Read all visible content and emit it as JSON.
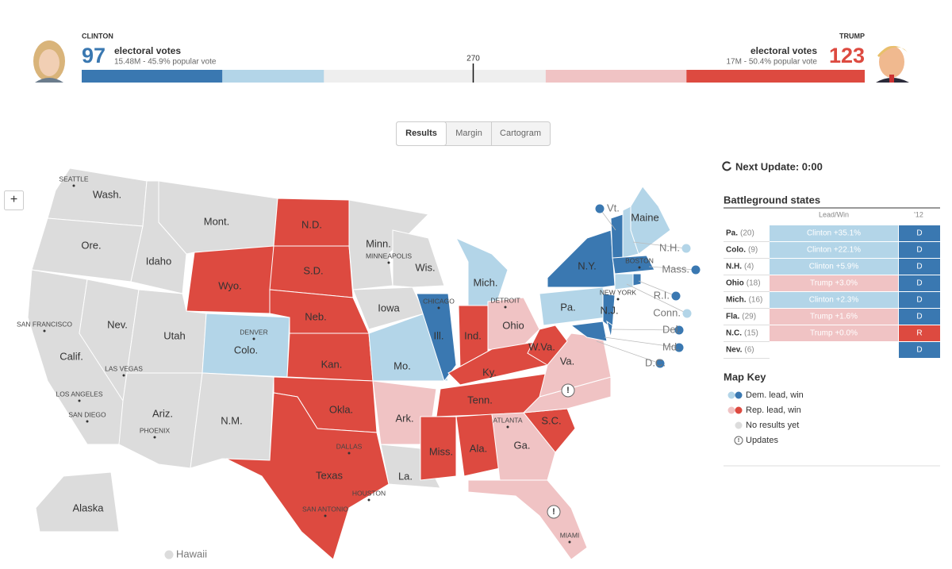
{
  "header": {
    "clinton": {
      "name": "CLINTON",
      "electoral_votes": 97,
      "ev_label": "electoral votes",
      "popular": "15.48M - 45.9% popular vote",
      "lead_votes": 70,
      "color": "#3a78b1",
      "lead_color": "#b3d5e8"
    },
    "trump": {
      "name": "TRUMP",
      "electoral_votes": 123,
      "ev_label": "electoral votes",
      "popular": "17M - 50.4% popular vote",
      "lead_votes": 97,
      "color": "#dd4a40",
      "lead_color": "#f0c3c4"
    },
    "threshold": 270
  },
  "tabs": [
    "Results",
    "Margin",
    "Cartogram"
  ],
  "zoom": "+",
  "map": {
    "states": [
      {
        "label": "Wash.",
        "color": "#dcdcdc"
      },
      {
        "label": "Ore.",
        "color": "#dcdcdc"
      },
      {
        "label": "Calif.",
        "color": "#dcdcdc"
      },
      {
        "label": "Nev.",
        "color": "#dcdcdc"
      },
      {
        "label": "Idaho",
        "color": "#dcdcdc"
      },
      {
        "label": "Mont.",
        "color": "#dcdcdc"
      },
      {
        "label": "Wyo.",
        "color": "#dd4a40"
      },
      {
        "label": "Utah",
        "color": "#dcdcdc"
      },
      {
        "label": "Colo.",
        "color": "#b3d5e8"
      },
      {
        "label": "Ariz.",
        "color": "#dcdcdc"
      },
      {
        "label": "N.M.",
        "color": "#dcdcdc"
      },
      {
        "label": "N.D.",
        "color": "#dd4a40"
      },
      {
        "label": "S.D.",
        "color": "#dd4a40"
      },
      {
        "label": "Neb.",
        "color": "#dd4a40"
      },
      {
        "label": "Kan.",
        "color": "#dd4a40"
      },
      {
        "label": "Okla.",
        "color": "#dd4a40"
      },
      {
        "label": "Texas",
        "color": "#dd4a40"
      },
      {
        "label": "Minn.",
        "color": "#dcdcdc"
      },
      {
        "label": "Iowa",
        "color": "#dcdcdc"
      },
      {
        "label": "Wis.",
        "color": "#dcdcdc"
      },
      {
        "label": "Mo.",
        "color": "#b3d5e8"
      },
      {
        "label": "Ark.",
        "color": "#f0c3c4"
      },
      {
        "label": "La.",
        "color": "#dcdcdc"
      },
      {
        "label": "Ill.",
        "color": "#3a78b1"
      },
      {
        "label": "Mich.",
        "color": "#b3d5e8"
      },
      {
        "label": "Ind.",
        "color": "#dd4a40"
      },
      {
        "label": "Ohio",
        "color": "#f0c3c4"
      },
      {
        "label": "Ky.",
        "color": "#dd4a40"
      },
      {
        "label": "Tenn.",
        "color": "#dd4a40"
      },
      {
        "label": "Miss.",
        "color": "#dd4a40"
      },
      {
        "label": "Ala.",
        "color": "#dd4a40"
      },
      {
        "label": "Ga.",
        "color": "#f0c3c4"
      },
      {
        "color": "#f0c3c4"
      },
      {
        "label": "S.C.",
        "color": "#dd4a40"
      },
      {
        "color": "#f0c3c4"
      },
      {
        "label": "Va.",
        "color": "#f0c3c4"
      },
      {
        "label": "W.Va.",
        "color": "#dd4a40"
      },
      {
        "label": "Pa.",
        "color": "#b3d5e8"
      },
      {
        "label": "N.Y.",
        "color": "#3a78b1"
      },
      {
        "label": "N.J.",
        "color": "#3a78b1"
      },
      {
        "label": "Md.",
        "color": "#3a78b1"
      },
      {
        "label": "Del.",
        "color": "#3a78b1"
      },
      {
        "label": "D.C.",
        "color": "#3a78b1"
      },
      {
        "label": "Vt.",
        "color": "#3a78b1"
      },
      {
        "label": "N.H.",
        "color": "#b3d5e8"
      },
      {
        "label": "Maine",
        "color": "#b3d5e8"
      },
      {
        "label": "Mass.",
        "color": "#3a78b1"
      },
      {
        "label": "Conn.",
        "color": "#b3d5e8"
      },
      {
        "label": "R.I.",
        "color": "#3a78b1"
      },
      {
        "label": "Alaska",
        "color": "#dcdcdc"
      },
      {
        "label": "Hawaii",
        "color": "#dcdcdc"
      }
    ],
    "cities": [
      "SEATTLE",
      "MINNEAPOLIS",
      "BOSTON",
      "CHICAGO",
      "DETROIT",
      "NEW YORK",
      "SAN FRANCISCO",
      "DENVER",
      "LAS VEGAS",
      "LOS ANGELES",
      "SAN DIEGO",
      "PHOENIX",
      "ATLANTA",
      "DALLAS",
      "HOUSTON",
      "SAN ANTONIO",
      "MIAMI"
    ]
  },
  "panel": {
    "next_update": "Next Update: 0:00",
    "battleground": {
      "title": "Battleground states",
      "columns": [
        "Lead/Win",
        "'12"
      ],
      "rows": [
        {
          "state": "Pa.",
          "ev": "(20)",
          "lead": "Clinton +35.1%",
          "lead_color": "#b3d5e8",
          "prev": "D",
          "prev_color": "#3a78b1"
        },
        {
          "state": "Colo.",
          "ev": "(9)",
          "lead": "Clinton +22.1%",
          "lead_color": "#b3d5e8",
          "prev": "D",
          "prev_color": "#3a78b1"
        },
        {
          "state": "N.H.",
          "ev": "(4)",
          "lead": "Clinton +5.9%",
          "lead_color": "#b3d5e8",
          "prev": "D",
          "prev_color": "#3a78b1"
        },
        {
          "state": "Ohio",
          "ev": "(18)",
          "lead": "Trump +3.0%",
          "lead_color": "#f0c3c4",
          "prev": "D",
          "prev_color": "#3a78b1"
        },
        {
          "state": "Mich.",
          "ev": "(16)",
          "lead": "Clinton +2.3%",
          "lead_color": "#b3d5e8",
          "prev": "D",
          "prev_color": "#3a78b1"
        },
        {
          "state": "Fla.",
          "ev": "(29)",
          "lead": "Trump +1.6%",
          "lead_color": "#f0c3c4",
          "prev": "D",
          "prev_color": "#3a78b1"
        },
        {
          "state": "N.C.",
          "ev": "(15)",
          "lead": "Trump +0.0%",
          "lead_color": "#f0c3c4",
          "prev": "R",
          "prev_color": "#dd4a40"
        },
        {
          "state": "Nev.",
          "ev": "(6)",
          "lead_color": "#ffffff",
          "prev": "D",
          "prev_color": "#3a78b1"
        }
      ]
    },
    "key": {
      "title": "Map Key",
      "items": [
        "Dem. lead, win",
        "Rep. lead, win",
        "No results yet",
        "Updates"
      ]
    }
  }
}
